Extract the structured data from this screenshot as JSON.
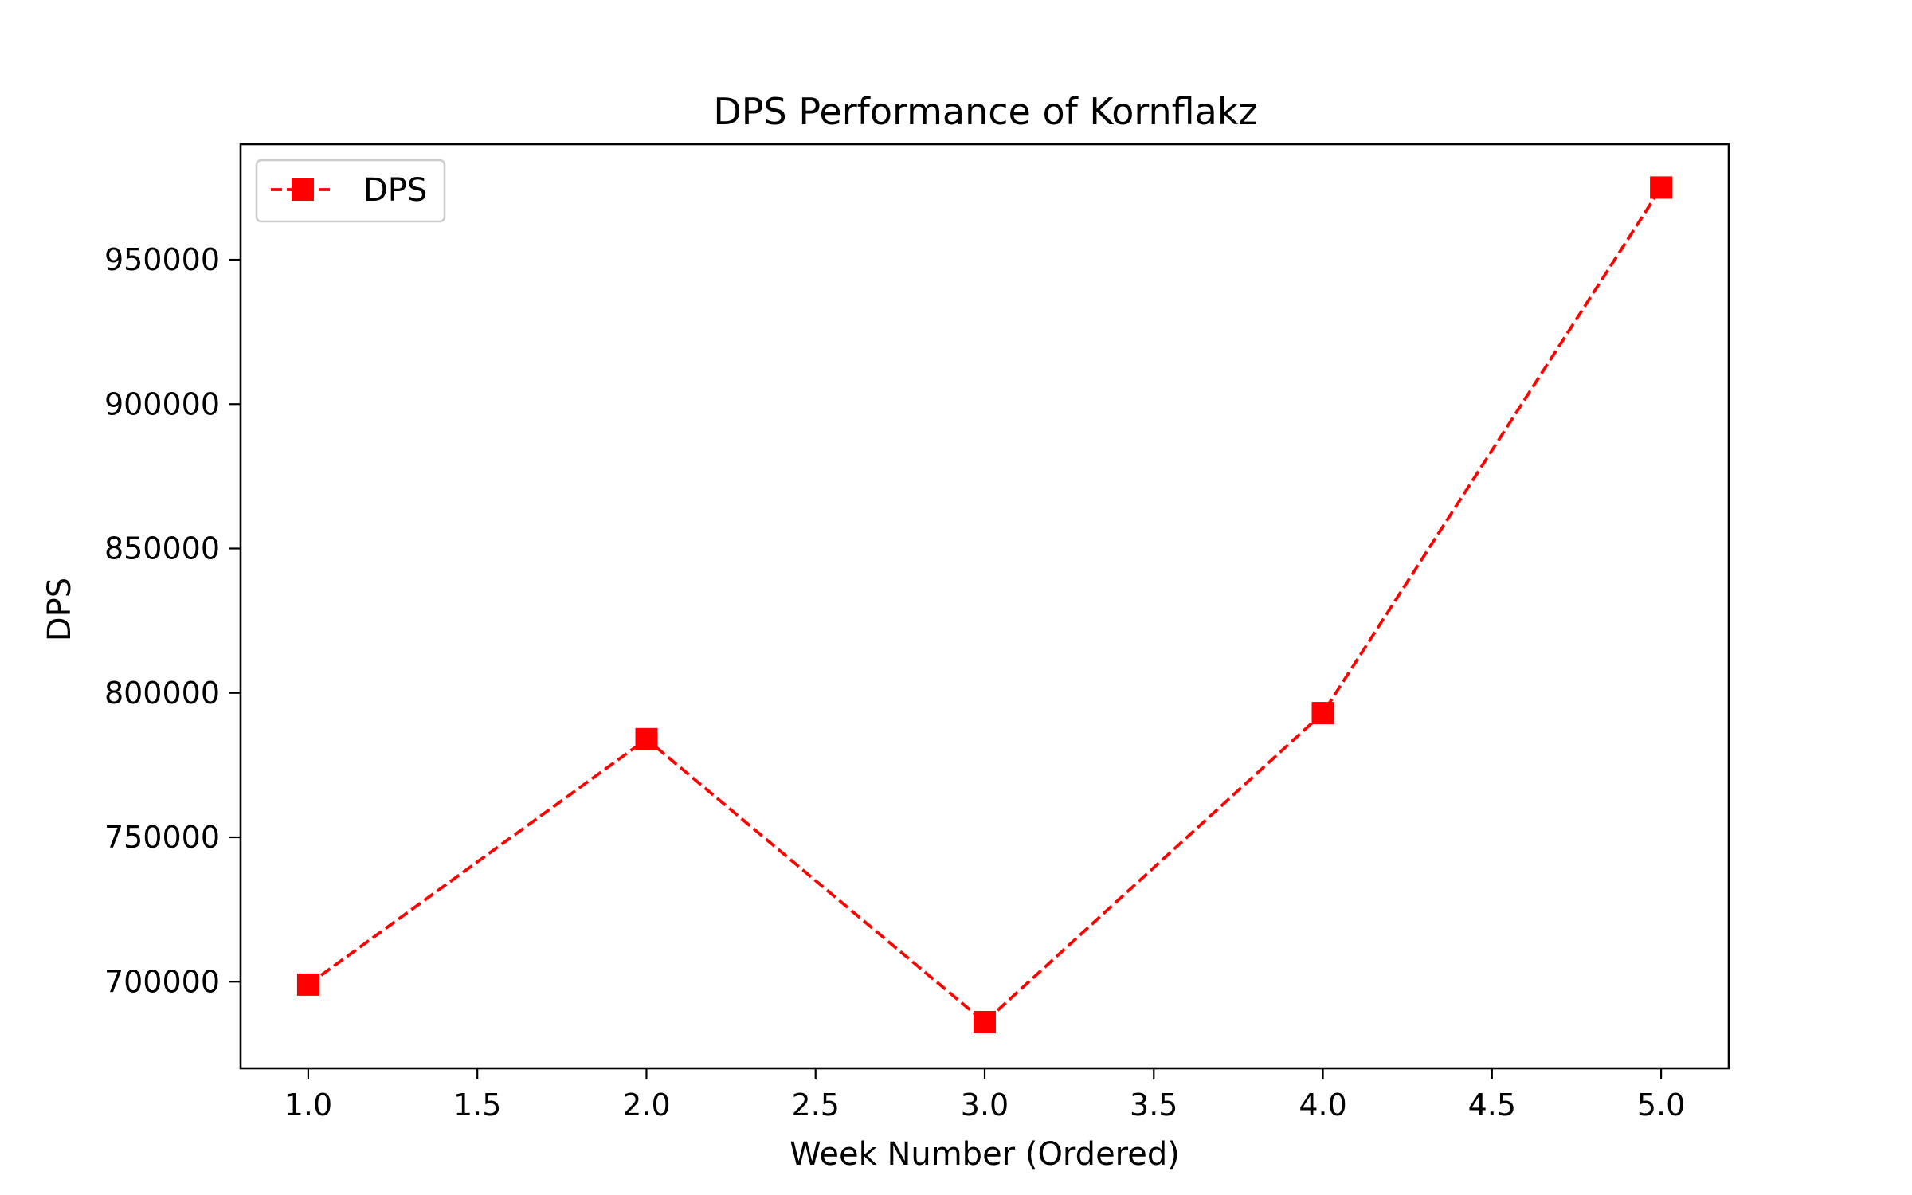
{
  "chart_data": {
    "type": "line",
    "title": "DPS Performance of Kornflakz",
    "xlabel": "Week Number (Ordered)",
    "ylabel": "DPS",
    "x": [
      1.0,
      2.0,
      3.0,
      4.0,
      5.0
    ],
    "series": [
      {
        "name": "DPS",
        "values": [
          699000,
          784000,
          686000,
          793000,
          975000
        ],
        "color": "#ff0000",
        "line_style": "dashed",
        "marker": "square"
      }
    ],
    "xlim": [
      0.8,
      5.2
    ],
    "ylim": [
      670000,
      990000
    ],
    "xticks": [
      1.0,
      1.5,
      2.0,
      2.5,
      3.0,
      3.5,
      4.0,
      4.5,
      5.0
    ],
    "xtick_labels": [
      "1.0",
      "1.5",
      "2.0",
      "2.5",
      "3.0",
      "3.5",
      "4.0",
      "4.5",
      "5.0"
    ],
    "yticks": [
      700000,
      750000,
      800000,
      850000,
      900000,
      950000
    ],
    "ytick_labels": [
      "700000",
      "750000",
      "800000",
      "850000",
      "900000",
      "950000"
    ],
    "grid": false,
    "legend_position": "top-left"
  }
}
